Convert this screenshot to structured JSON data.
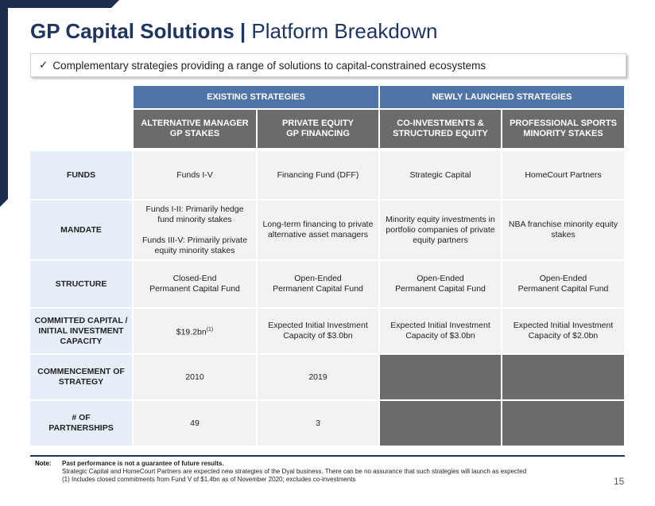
{
  "header": {
    "title_bold": "GP Capital Solutions |",
    "title_rest": "Platform Breakdown"
  },
  "callout": {
    "check": "✓",
    "text": "Complementary strategies providing a range of solutions to capital-constrained ecosystems"
  },
  "table": {
    "groups": [
      "EXISTING STRATEGIES",
      "NEWLY LAUNCHED STRATEGIES"
    ],
    "columns": [
      [
        "ALTERNATIVE MANAGER",
        "GP STAKES"
      ],
      [
        "PRIVATE EQUITY",
        "GP FINANCING"
      ],
      [
        "CO-INVESTMENTS &",
        "STRUCTURED EQUITY"
      ],
      [
        "PROFESSIONAL SPORTS",
        "MINORITY STAKES"
      ]
    ],
    "rows": [
      {
        "label": [
          "FUNDS"
        ],
        "cells": [
          "Funds I-V",
          "Financing Fund (DFF)",
          "Strategic Capital",
          "HomeCourt Partners"
        ]
      },
      {
        "label": [
          "MANDATE"
        ],
        "cells": [
          [
            [
              "Funds I-II: Primarily hedge",
              "fund minority stakes"
            ],
            [
              "Funds III-V: Primarily private",
              "equity minority stakes"
            ]
          ],
          [
            "Long-term financing to private",
            "alternative asset managers"
          ],
          [
            "Minority equity investments in",
            "portfolio companies of private",
            "equity partners"
          ],
          [
            "NBA franchise minority equity",
            "stakes"
          ]
        ]
      },
      {
        "label": [
          "STRUCTURE"
        ],
        "cells": [
          [
            "Closed-End",
            "Permanent Capital Fund"
          ],
          [
            "Open-Ended",
            "Permanent Capital Fund"
          ],
          [
            "Open-Ended",
            "Permanent Capital Fund"
          ],
          [
            "Open-Ended",
            "Permanent Capital Fund"
          ]
        ]
      },
      {
        "label": [
          "COMMITTED CAPITAL /",
          "INITIAL INVESTMENT",
          "CAPACITY"
        ],
        "cells": [
          {
            "text": "$19.2bn",
            "note": "(1)"
          },
          [
            "Expected Initial Investment",
            "Capacity of $3.0bn"
          ],
          [
            "Expected Initial Investment",
            "Capacity of $3.0bn"
          ],
          [
            "Expected Initial Investment",
            "Capacity of $2.0bn"
          ]
        ]
      },
      {
        "label": [
          "COMMENCEMENT OF",
          "STRATEGY"
        ],
        "cells": [
          "2010",
          "2019",
          null,
          null
        ]
      },
      {
        "label": [
          "# OF",
          "PARTNERSHIPS"
        ],
        "cells": [
          "49",
          "3",
          null,
          null
        ]
      }
    ]
  },
  "notes": {
    "label": "Note:",
    "lines": [
      "Past performance is not a guarantee of future results.",
      "Strategic Capital and HomeCourt Partners are expected new strategies of the Dyal business. There can be no assurance that such strategies will launch as expected",
      "(1) Includes closed commitments from Fund V of $1.4bn as of November 2020; excludes co-investments"
    ]
  },
  "page_number": "15"
}
